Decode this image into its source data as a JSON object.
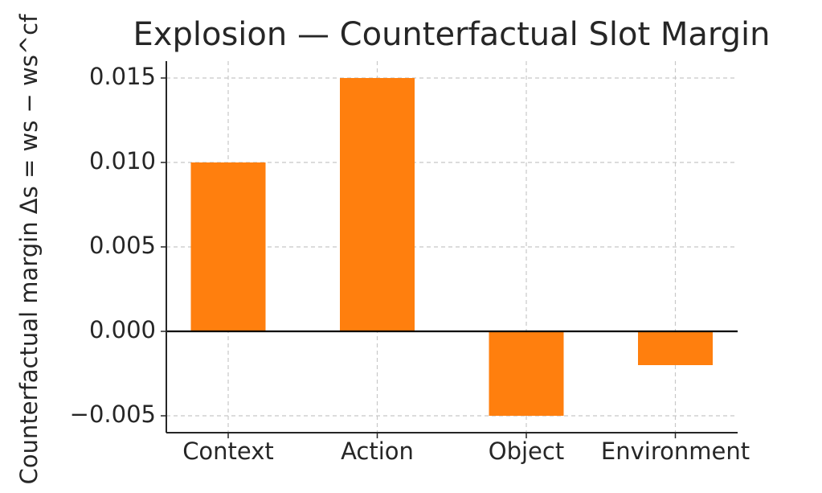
{
  "chart_data": {
    "type": "bar",
    "title": "Explosion — Counterfactual Slot Margin",
    "y_label": "Counterfactual margin Δs = ws − ws^cf",
    "categories": [
      "Context",
      "Action",
      "Object",
      "Environment"
    ],
    "values": [
      0.01,
      0.015,
      -0.005,
      -0.002
    ],
    "color": "#ff7f0e",
    "ylim": [
      -0.006,
      0.016
    ],
    "yticks": [
      {
        "value": -0.005,
        "label": "−0.005"
      },
      {
        "value": 0,
        "label": "0.000"
      },
      0.005,
      {
        "value": 0.01,
        "label": "0.010"
      },
      0.015
    ],
    "grid": true
  }
}
